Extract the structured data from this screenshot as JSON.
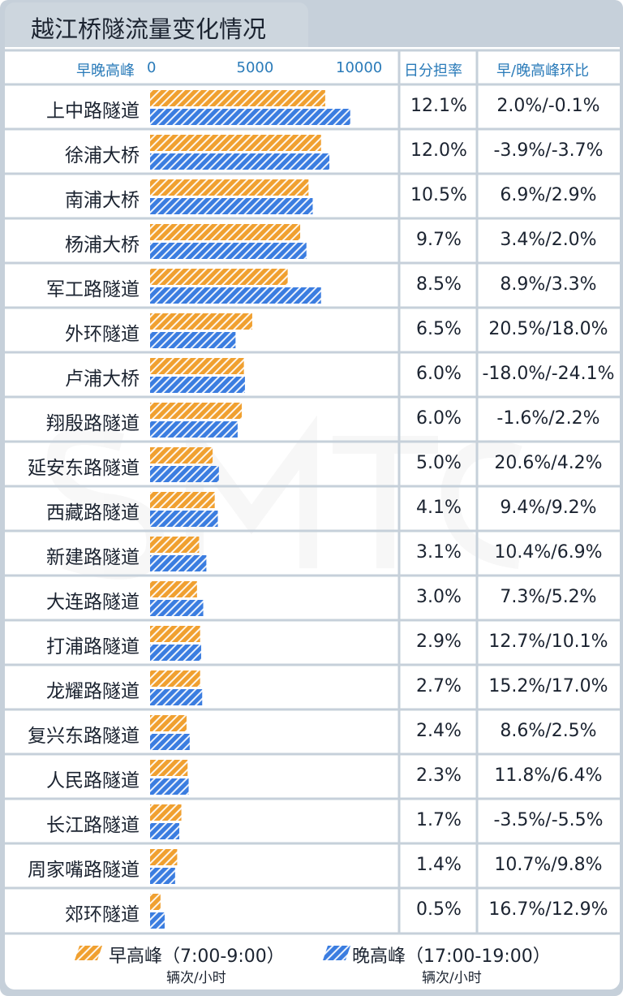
{
  "title": "越江桥隧流量变化情况",
  "header": {
    "axis_label": "早晚高峰",
    "col_share": "日分担率",
    "col_ratio": "早/晚高峰环比"
  },
  "colors": {
    "morning": "#f0a030",
    "evening": "#3b7de0",
    "header_text": "#2a7bb9",
    "grid": "#c6d0da"
  },
  "chart_data": {
    "type": "bar",
    "orientation": "horizontal",
    "xlim": [
      0,
      13000
    ],
    "ticks": [
      0,
      5000,
      10000
    ],
    "categories": [
      "上中路隧道",
      "徐浦大桥",
      "南浦大桥",
      "杨浦大桥",
      "军工路隧道",
      "外环隧道",
      "卢浦大桥",
      "翔殷路隧道",
      "延安东路隧道",
      "西藏路隧道",
      "新建路隧道",
      "大连路隧道",
      "打浦路隧道",
      "龙耀路隧道",
      "复兴东路隧道",
      "人民路隧道",
      "长江路隧道",
      "周家嘴路隧道",
      "郊环隧道"
    ],
    "series": [
      {
        "name": "早高峰（7:00-9:00）",
        "unit": "辆次/小时",
        "color": "#f0a030",
        "values": [
          8400,
          8200,
          7600,
          7200,
          6600,
          4900,
          4500,
          4400,
          3000,
          3100,
          2350,
          2250,
          2400,
          2400,
          1750,
          1800,
          1500,
          1300,
          500
        ]
      },
      {
        "name": "晚高峰（17:00-19:00）",
        "unit": "辆次/小时",
        "color": "#3b7de0",
        "values": [
          9600,
          8600,
          7800,
          7500,
          8200,
          4100,
          4550,
          4200,
          3300,
          3250,
          2700,
          2550,
          2450,
          2500,
          1900,
          1850,
          1400,
          1200,
          700
        ]
      }
    ],
    "share": [
      "12.1%",
      "12.0%",
      "10.5%",
      "9.7%",
      "8.5%",
      "6.5%",
      "6.0%",
      "6.0%",
      "5.0%",
      "4.1%",
      "3.1%",
      "3.0%",
      "2.9%",
      "2.7%",
      "2.4%",
      "2.3%",
      "1.7%",
      "1.4%",
      "0.5%"
    ],
    "ratio": [
      "2.0%/-0.1%",
      "-3.9%/-3.7%",
      "6.9%/2.9%",
      "3.4%/2.0%",
      "8.9%/3.3%",
      "20.5%/18.0%",
      "-18.0%/-24.1%",
      "-1.6%/2.2%",
      "20.6%/4.2%",
      "9.4%/9.2%",
      "10.4%/6.9%",
      "7.3%/5.2%",
      "12.7%/10.1%",
      "15.2%/17.0%",
      "8.6%/2.5%",
      "11.8%/6.4%",
      "-3.5%/-5.5%",
      "10.7%/9.8%",
      "16.7%/12.9%"
    ]
  }
}
